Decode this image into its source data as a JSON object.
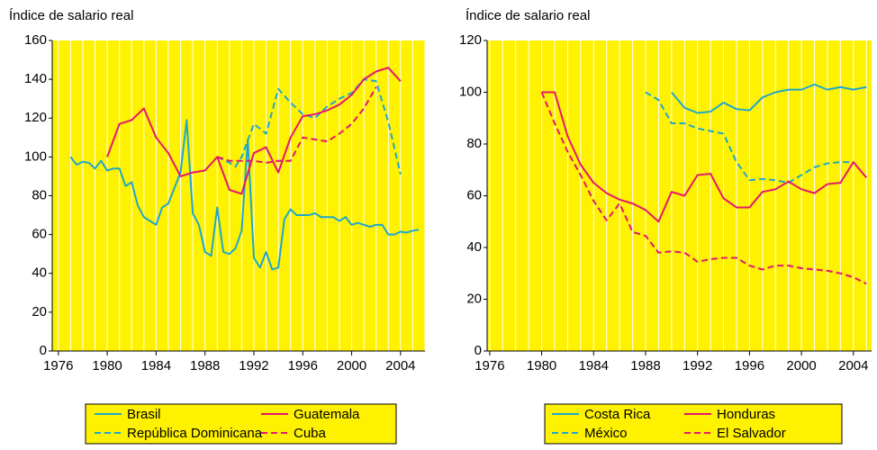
{
  "chart_data": [
    {
      "type": "line",
      "ylabel": "Índice de salario real",
      "xlim": [
        1975.5,
        2006
      ],
      "ylim": [
        0,
        160
      ],
      "xticks": [
        1976,
        1980,
        1984,
        1988,
        1992,
        1996,
        2000,
        2004
      ],
      "yticks": [
        0,
        20,
        40,
        60,
        80,
        100,
        120,
        140,
        160
      ],
      "xgrid_step": 1,
      "background": "#fff200",
      "legend": "bottom",
      "series": [
        {
          "name": "Brasil",
          "color": "#1ea7cc",
          "dashed": false,
          "x": [
            1977,
            1977.5,
            1978,
            1978.5,
            1979,
            1979.5,
            1980,
            1980.5,
            1981,
            1981.5,
            1982,
            1982.5,
            1983,
            1983.5,
            1984,
            1984.5,
            1985,
            1985.5,
            1986,
            1986.5,
            1987,
            1987.5,
            1988,
            1988.5,
            1989,
            1989.5,
            1990,
            1990.5,
            1991,
            1991.5,
            1992,
            1992.5,
            1993,
            1993.5,
            1994,
            1994.5,
            1995,
            1995.5,
            1996,
            1996.5,
            1997,
            1997.5,
            1998,
            1998.5,
            1999,
            1999.5,
            2000,
            2000.5,
            2001,
            2001.5,
            2002,
            2002.5,
            2003,
            2003.5,
            2004,
            2004.5,
            2005,
            2005.5
          ],
          "values": [
            100,
            96,
            97.5,
            97,
            94,
            98,
            93,
            94,
            94,
            85,
            87,
            75,
            69,
            67,
            65,
            74,
            76,
            84,
            92,
            119,
            71,
            65,
            51,
            49,
            74,
            51,
            50,
            53,
            62,
            109,
            48,
            43,
            51,
            42,
            43,
            68,
            73,
            70,
            70,
            70,
            71,
            69,
            69,
            69,
            67,
            69,
            65,
            66,
            65,
            64,
            65,
            65,
            60,
            60,
            61.5,
            61,
            62,
            62.5
          ]
        },
        {
          "name": "República Dominicana",
          "color": "#1ea7cc",
          "dashed": true,
          "x": [
            1989,
            1990,
            1990.5,
            1991,
            1992,
            1993,
            1994,
            1995,
            1996,
            1997,
            1998,
            1999,
            2000,
            2001,
            2002,
            2003,
            2004
          ],
          "values": [
            100,
            97,
            95,
            100,
            117,
            112,
            135,
            128,
            122,
            120,
            126,
            130,
            133,
            140,
            139,
            118,
            91
          ]
        },
        {
          "name": "Guatemala",
          "color": "#e5176d",
          "dashed": false,
          "x": [
            1980,
            1981,
            1982,
            1983,
            1984,
            1985,
            1986,
            1987,
            1988,
            1989,
            1990,
            1991,
            1992,
            1993,
            1994,
            1995,
            1996,
            1997,
            1998,
            1999,
            2000,
            2001,
            2002,
            2003,
            2004
          ],
          "values": [
            100,
            117,
            119,
            125,
            110,
            102,
            90,
            92,
            93,
            100,
            83,
            81,
            102,
            105,
            92,
            110,
            121,
            122,
            124,
            127,
            132,
            140,
            144,
            146,
            139
          ]
        },
        {
          "name": "Cuba",
          "color": "#e5176d",
          "dashed": true,
          "x": [
            1989,
            1990,
            1991,
            1992,
            1993,
            1994,
            1995,
            1996,
            1997,
            1998,
            1999,
            2000,
            2001,
            2002
          ],
          "values": [
            100,
            98,
            98,
            98,
            97,
            98,
            98,
            110,
            109,
            108,
            112,
            117,
            125,
            136
          ]
        }
      ]
    },
    {
      "type": "line",
      "ylabel": "Índice de salario real",
      "xlim": [
        1975.8,
        2005.4
      ],
      "ylim": [
        0,
        120
      ],
      "xticks": [
        1976,
        1980,
        1984,
        1988,
        1992,
        1996,
        2000,
        2004
      ],
      "yticks": [
        0,
        20,
        40,
        60,
        80,
        100,
        120
      ],
      "xgrid_step": 1,
      "background": "#fff200",
      "legend": "bottom",
      "series": [
        {
          "name": "Costa Rica",
          "color": "#1ea7cc",
          "dashed": false,
          "x": [
            1990,
            1991,
            1992,
            1993,
            1994,
            1995,
            1996,
            1997,
            1998,
            1999,
            2000,
            2001,
            2002,
            2003,
            2004,
            2005
          ],
          "values": [
            100,
            94,
            92,
            92.5,
            96,
            93.5,
            93,
            98,
            100,
            101,
            101,
            103,
            101,
            102,
            101,
            102
          ]
        },
        {
          "name": "México",
          "color": "#1ea7cc",
          "dashed": true,
          "x": [
            1988,
            1989,
            1990,
            1991,
            1992,
            1993,
            1994,
            1995,
            1996,
            1997,
            1998,
            1999,
            2000,
            2001,
            2002,
            2003,
            2004
          ],
          "values": [
            100,
            97,
            88,
            88,
            86,
            85,
            84,
            73,
            66,
            66.5,
            66,
            65,
            68,
            71,
            72.5,
            73,
            73
          ]
        },
        {
          "name": "Honduras",
          "color": "#e5176d",
          "dashed": false,
          "x": [
            1980,
            1981,
            1982,
            1983,
            1984,
            1985,
            1986,
            1987,
            1988,
            1989,
            1990,
            1991,
            1992,
            1993,
            1994,
            1995,
            1996,
            1997,
            1998,
            1999,
            2000,
            2001,
            2002,
            2003,
            2004,
            2005
          ],
          "values": [
            100,
            100,
            83,
            72,
            65,
            61,
            58.5,
            57,
            54.5,
            50,
            61.5,
            60,
            68,
            68.5,
            59,
            55.5,
            55.5,
            61.5,
            62.5,
            65.5,
            62.5,
            61,
            64.5,
            65,
            73,
            67
          ]
        },
        {
          "name": "El Salvador",
          "color": "#e5176d",
          "dashed": true,
          "x": [
            1980,
            1981,
            1982,
            1983,
            1984,
            1985,
            1986,
            1987,
            1988,
            1989,
            1990,
            1991,
            1992,
            1993,
            1994,
            1995,
            1996,
            1997,
            1998,
            1999,
            2000,
            2001,
            2002,
            2003,
            2004,
            2005
          ],
          "values": [
            100,
            88,
            77,
            68,
            58,
            50.5,
            57,
            46,
            44.5,
            38,
            38.5,
            38,
            34.5,
            35.5,
            36,
            36,
            33,
            31.5,
            33,
            33,
            32,
            31.5,
            31,
            30,
            28.5,
            26
          ]
        }
      ]
    }
  ]
}
